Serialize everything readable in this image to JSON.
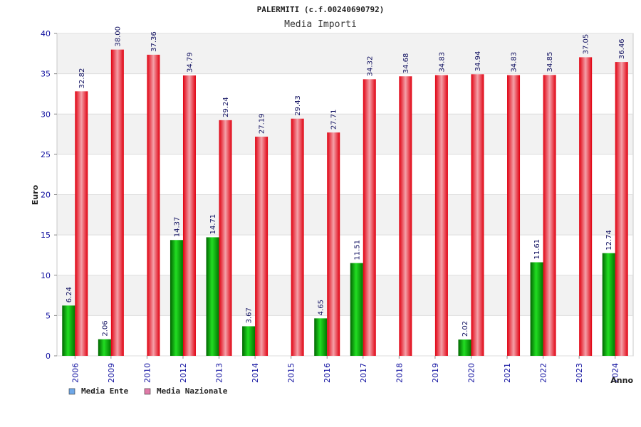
{
  "chart_data": {
    "type": "bar",
    "title": "PALERMITI (c.f.00240690792)",
    "subtitle": "Media Importi",
    "xlabel": "Anno",
    "ylabel": "Euro",
    "ylim": [
      0,
      40
    ],
    "yticks": [
      0,
      5,
      10,
      15,
      20,
      25,
      30,
      35,
      40
    ],
    "grid": true,
    "legend_position": "bottom-left",
    "categories": [
      "2006",
      "2009",
      "2010",
      "2012",
      "2013",
      "2014",
      "2015",
      "2016",
      "2017",
      "2018",
      "2019",
      "2020",
      "2021",
      "2022",
      "2023",
      "2024"
    ],
    "series": [
      {
        "name": "Media Ente",
        "legend_color": "#6fa8e8",
        "bar_color": "#00a000",
        "values": [
          6.24,
          2.06,
          null,
          14.37,
          14.71,
          3.67,
          null,
          4.65,
          11.51,
          null,
          null,
          2.02,
          null,
          11.61,
          null,
          12.74
        ],
        "labels": [
          "6.24",
          "2.06",
          "",
          "14.37",
          "14.71",
          "3.67",
          "",
          "4.65",
          "11.51",
          "",
          "",
          "2.02",
          "",
          "11.61",
          "",
          "12.74"
        ]
      },
      {
        "name": "Media Nazionale",
        "legend_color": "#e07aa8",
        "bar_color": "#e8101e",
        "values": [
          32.82,
          38.0,
          37.36,
          34.79,
          29.24,
          27.19,
          29.43,
          27.71,
          34.32,
          34.68,
          34.83,
          34.94,
          34.83,
          34.85,
          37.05,
          36.46
        ],
        "labels": [
          "32.82",
          "38.00",
          "37.36",
          "34.79",
          "29.24",
          "27.19",
          "29.43",
          "27.71",
          "34.32",
          "34.68",
          "34.83",
          "34.94",
          "34.83",
          "34.85",
          "37.05",
          "36.46"
        ]
      }
    ]
  }
}
